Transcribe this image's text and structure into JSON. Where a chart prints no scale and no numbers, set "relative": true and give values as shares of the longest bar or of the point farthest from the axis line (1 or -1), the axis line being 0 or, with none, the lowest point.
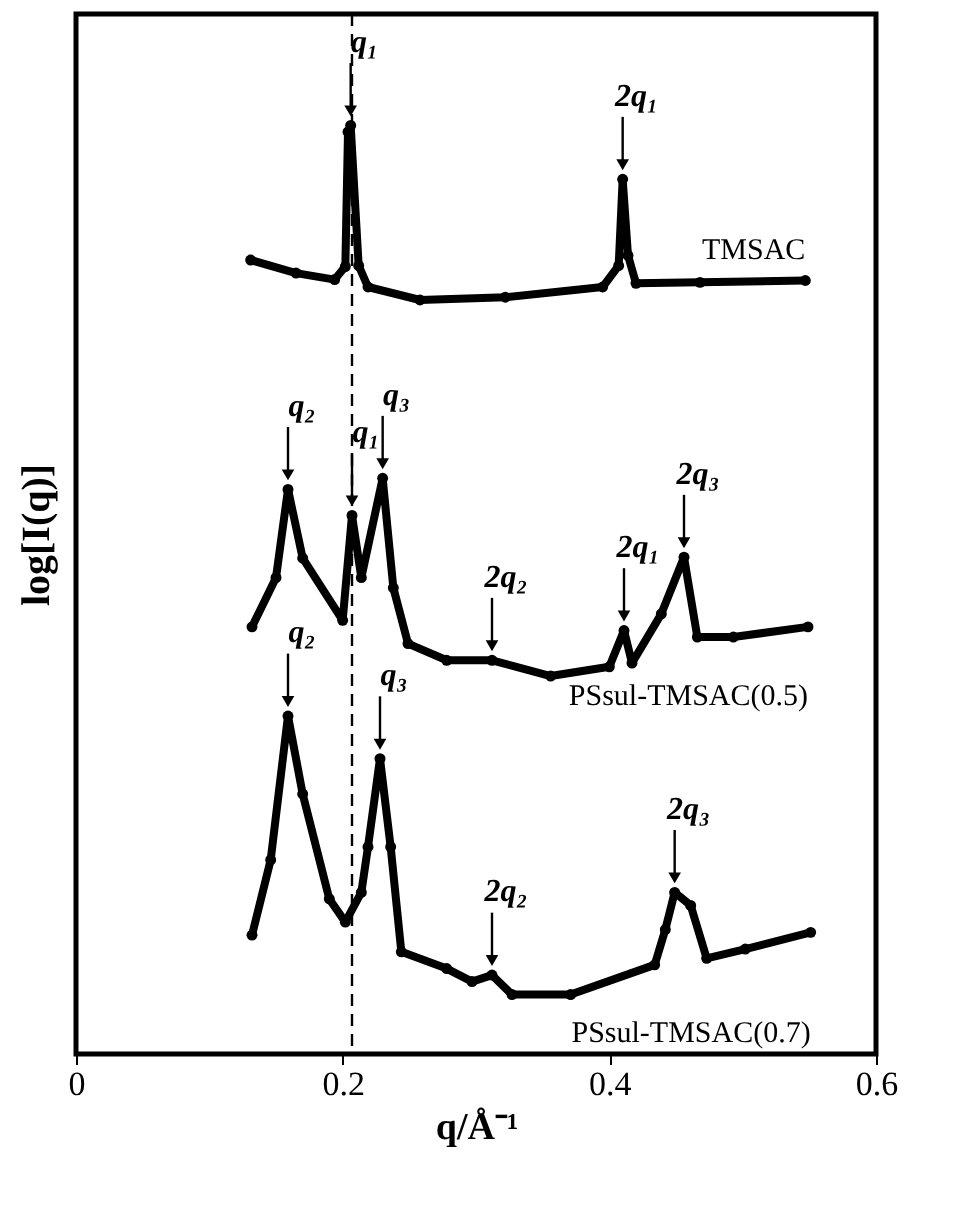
{
  "chart_data": {
    "type": "line",
    "xlabel": "q/Å⁻¹",
    "ylabel": "log[I(q)]",
    "relative": true,
    "xlim": [
      0,
      0.6
    ],
    "xticks": [
      0,
      0.2,
      0.4,
      0.6
    ],
    "tick_labels": "x",
    "grid": false,
    "marker": "circle",
    "series": [
      {
        "name": "TMSAC",
        "color": "#000000",
        "x": [
          0.131,
          0.165,
          0.194,
          0.202,
          0.204,
          0.206,
          0.212,
          0.219,
          0.258,
          0.322,
          0.395,
          0.407,
          0.41,
          0.414,
          0.42,
          0.468,
          0.547
        ],
        "values": [
          0.855,
          0.841,
          0.834,
          0.848,
          0.993,
          1.0,
          0.849,
          0.826,
          0.812,
          0.815,
          0.826,
          0.849,
          0.942,
          0.86,
          0.83,
          0.831,
          0.833
        ]
      },
      {
        "name": "PSsul-TMSAC(0.5)",
        "color": "#000000",
        "x": [
          0.132,
          0.15,
          0.159,
          0.17,
          0.2,
          0.207,
          0.214,
          0.23,
          0.238,
          0.249,
          0.278,
          0.312,
          0.356,
          0.4,
          0.411,
          0.417,
          0.439,
          0.456,
          0.466,
          0.493,
          0.549
        ],
        "values": [
          0.46,
          0.513,
          0.608,
          0.534,
          0.467,
          0.58,
          0.513,
          0.62,
          0.502,
          0.442,
          0.424,
          0.424,
          0.407,
          0.417,
          0.456,
          0.421,
          0.474,
          0.535,
          0.449,
          0.449,
          0.46
        ]
      },
      {
        "name": "PSsul-TMSAC(0.7)",
        "color": "#000000",
        "x": [
          0.132,
          0.146,
          0.159,
          0.17,
          0.19,
          0.202,
          0.214,
          0.219,
          0.228,
          0.236,
          0.244,
          0.278,
          0.297,
          0.312,
          0.327,
          0.371,
          0.434,
          0.442,
          0.449,
          0.461,
          0.473,
          0.502,
          0.551
        ],
        "values": [
          0.128,
          0.209,
          0.364,
          0.28,
          0.167,
          0.142,
          0.174,
          0.223,
          0.318,
          0.223,
          0.11,
          0.092,
          0.078,
          0.085,
          0.064,
          0.064,
          0.096,
          0.134,
          0.174,
          0.16,
          0.103,
          0.113,
          0.131
        ]
      }
    ],
    "ref_lines": [
      {
        "axis": "x",
        "value": 0.207,
        "line_style": "dashed",
        "color": "#000000"
      }
    ],
    "annotations": [
      {
        "text": "q₁",
        "x": 0.206,
        "y": 1.0
      },
      {
        "text": "2q₁",
        "x": 0.41,
        "y": 0.942
      },
      {
        "text": "q₂",
        "x": 0.159,
        "y": 0.608
      },
      {
        "text": "q₁",
        "x": 0.207,
        "y": 0.58
      },
      {
        "text": "q₃",
        "x": 0.23,
        "y": 0.62
      },
      {
        "text": "2q₂",
        "x": 0.312,
        "y": 0.424
      },
      {
        "text": "2q₁",
        "x": 0.411,
        "y": 0.456
      },
      {
        "text": "2q₃",
        "x": 0.456,
        "y": 0.535
      },
      {
        "text": "q₂",
        "x": 0.159,
        "y": 0.364
      },
      {
        "text": "q₃",
        "x": 0.228,
        "y": 0.318
      },
      {
        "text": "2q₂",
        "x": 0.312,
        "y": 0.085
      },
      {
        "text": "2q₃",
        "x": 0.449,
        "y": 0.174
      }
    ]
  }
}
